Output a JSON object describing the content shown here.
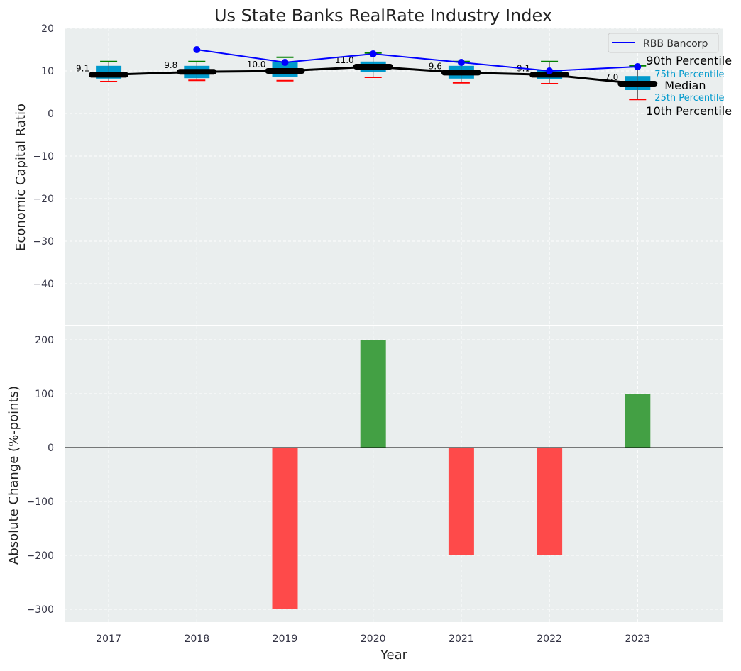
{
  "chart_data": [
    {
      "type": "box",
      "title": "Us State Banks RealRate Industry Index",
      "ylabel": "Economic Capital Ratio",
      "ylim": [
        -50,
        20
      ],
      "yticks": [
        20,
        10,
        0,
        -10,
        -20,
        -30,
        -40
      ],
      "ytick_labels": [
        "20",
        "10",
        "0",
        "−10",
        "−20",
        "−30",
        "−40"
      ],
      "grid": true,
      "x": [
        2017,
        2018,
        2019,
        2020,
        2021,
        2022,
        2023
      ],
      "p90": [
        12.2,
        12.2,
        13.2,
        14.2,
        12.2,
        12.2,
        11.2
      ],
      "p75": [
        11.2,
        11.2,
        12.2,
        12.2,
        11.2,
        10.3,
        8.8
      ],
      "median": [
        9.1,
        9.8,
        10.0,
        11.0,
        9.6,
        9.1,
        7.0
      ],
      "median_labels": [
        "9.1",
        "9.8",
        "10.0",
        "11.0",
        "9.6",
        "9.1",
        "7.0"
      ],
      "p25": [
        8.2,
        8.3,
        8.5,
        9.7,
        8.2,
        8.0,
        5.5
      ],
      "p10": [
        7.5,
        7.8,
        7.7,
        8.5,
        7.2,
        7.0,
        3.3
      ],
      "rbb": {
        "name": "RBB Bancorp",
        "x": [
          2018,
          2019,
          2020,
          2021,
          2022,
          2023
        ],
        "values": [
          15,
          12,
          14,
          12,
          10,
          11
        ]
      },
      "legend": {
        "placement": "top-right",
        "entries": [
          "RBB Bancorp"
        ]
      },
      "annotations": {
        "p90": "90th Percentile",
        "p75": "75th Percentile",
        "median": "Median",
        "p25": "25th Percentile",
        "p10": "10th Percentile"
      },
      "colors": {
        "box": "#0099cc",
        "median": "#000000",
        "rbb": "#0000ff",
        "p90": "#008000",
        "p10": "#ff0000"
      }
    },
    {
      "type": "bar",
      "xlabel": "Year",
      "ylabel": "Absolute Change (%-points)",
      "ylim": [
        -325,
        225
      ],
      "yticks": [
        200,
        100,
        0,
        -100,
        -200,
        -300
      ],
      "ytick_labels": [
        "200",
        "100",
        "0",
        "−100",
        "−200",
        "−300"
      ],
      "categories": [
        "2017",
        "2018",
        "2019",
        "2020",
        "2021",
        "2022",
        "2023"
      ],
      "x": [
        2017,
        2018,
        2019,
        2020,
        2021,
        2022,
        2023
      ],
      "values": [
        0,
        0,
        -300,
        200,
        -200,
        -200,
        100
      ],
      "colors": {
        "positive": "#3a9b3a",
        "negative": "#ff4040"
      }
    }
  ]
}
